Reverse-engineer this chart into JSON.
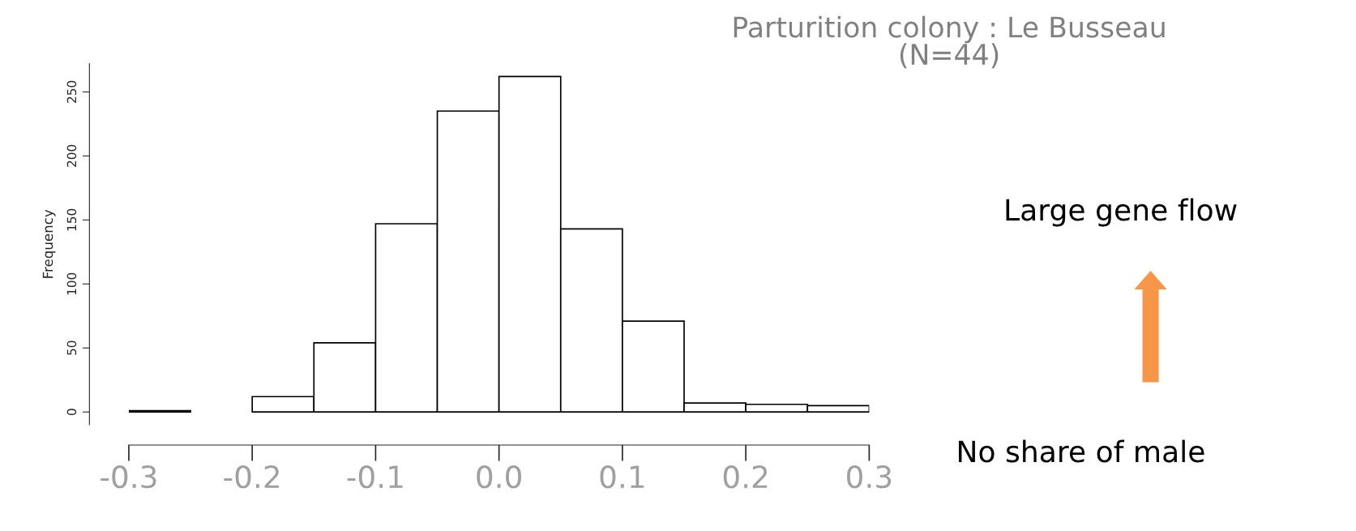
{
  "chart_data": {
    "type": "histogram",
    "title": "Parturition colony : Le Busseau\n(N=44)",
    "ylabel": "Frequency",
    "bins": [
      -0.3,
      -0.25,
      -0.2,
      -0.15,
      -0.1,
      -0.05,
      0.0,
      0.05,
      0.1,
      0.15,
      0.2,
      0.25,
      0.3
    ],
    "values": [
      1,
      0,
      12,
      54,
      147,
      235,
      262,
      143,
      71,
      7,
      6,
      5
    ],
    "color": "#ffffff",
    "xlim": [
      -0.3,
      0.3
    ],
    "xticks": [
      {
        "value": -0.3,
        "label": "-0.3"
      },
      {
        "value": -0.2,
        "label": "-0.2"
      },
      {
        "value": -0.1,
        "label": "-0.1"
      },
      {
        "value": 0.0,
        "label": "0.0"
      },
      {
        "value": 0.1,
        "label": "0.1"
      },
      {
        "value": 0.2,
        "label": "0.2"
      },
      {
        "value": 0.3,
        "label": "0.3"
      }
    ],
    "ylim": [
      -10,
      272
    ],
    "yticks": [
      0,
      50,
      100,
      150,
      200,
      250
    ],
    "grid": false,
    "annotations": [
      "Large gene flow",
      "No share of male"
    ]
  }
}
